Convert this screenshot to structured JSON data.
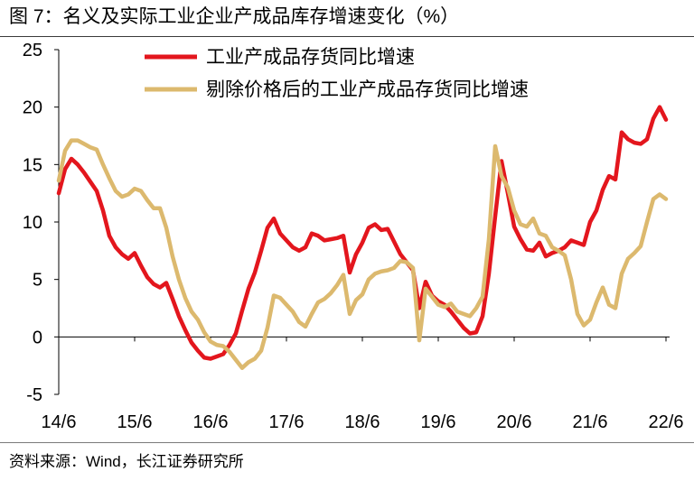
{
  "source": "资料来源：Wind，长江证券研究所",
  "chart_data": {
    "type": "line",
    "title": "图 7：名义及实际工业企业产成品库存增速变化（%）",
    "ylim": [
      -5,
      25
    ],
    "yticks": [
      -5,
      0,
      5,
      10,
      15,
      20,
      25
    ],
    "x_tick_labels": [
      "14/6",
      "15/6",
      "16/6",
      "17/6",
      "18/6",
      "19/6",
      "20/6",
      "21/6",
      "22/6"
    ],
    "x": [
      "14/6",
      "14/7",
      "14/8",
      "14/9",
      "14/10",
      "14/11",
      "14/12",
      "15/1",
      "15/2",
      "15/3",
      "15/4",
      "15/5",
      "15/6",
      "15/7",
      "15/8",
      "15/9",
      "15/10",
      "15/11",
      "15/12",
      "16/1",
      "16/2",
      "16/3",
      "16/4",
      "16/5",
      "16/6",
      "16/7",
      "16/8",
      "16/9",
      "16/10",
      "16/11",
      "16/12",
      "17/1",
      "17/2",
      "17/3",
      "17/4",
      "17/5",
      "17/6",
      "17/7",
      "17/8",
      "17/9",
      "17/10",
      "17/11",
      "17/12",
      "18/1",
      "18/2",
      "18/3",
      "18/4",
      "18/5",
      "18/6",
      "18/7",
      "18/8",
      "18/9",
      "18/10",
      "18/11",
      "18/12",
      "19/1",
      "19/2",
      "19/3",
      "19/4",
      "19/5",
      "19/6",
      "19/7",
      "19/8",
      "19/9",
      "19/10",
      "19/11",
      "19/12",
      "20/1",
      "20/2",
      "20/3",
      "20/4",
      "20/5",
      "20/6",
      "20/7",
      "20/8",
      "20/9",
      "20/10",
      "20/11",
      "20/12",
      "21/1",
      "21/2",
      "21/3",
      "21/4",
      "21/5",
      "21/6",
      "21/7",
      "21/8",
      "21/9",
      "21/10",
      "21/11",
      "21/12",
      "22/1",
      "22/2",
      "22/3",
      "22/4",
      "22/5",
      "22/6"
    ],
    "series": [
      {
        "name": "工业产成品存货同比增速",
        "color": "#e3161d",
        "values": [
          12.5,
          14.6,
          15.5,
          15.0,
          14.3,
          13.5,
          12.7,
          11.0,
          8.8,
          7.8,
          7.2,
          6.8,
          7.3,
          6.2,
          5.2,
          4.6,
          4.3,
          4.7,
          3.3,
          1.8,
          0.6,
          -0.5,
          -1.2,
          -1.8,
          -1.9,
          -1.7,
          -1.5,
          -0.7,
          0.3,
          2.3,
          4.2,
          5.6,
          7.5,
          9.5,
          10.3,
          9.0,
          8.4,
          7.8,
          7.5,
          7.8,
          9.0,
          8.8,
          8.4,
          8.5,
          8.6,
          8.8,
          5.6,
          7.2,
          8.2,
          9.5,
          9.8,
          9.3,
          9.4,
          8.3,
          7.2,
          6.5,
          5.8,
          2.5,
          4.8,
          3.6,
          3.1,
          2.8,
          2.2,
          1.5,
          0.8,
          0.3,
          0.4,
          1.8,
          5.5,
          10.5,
          15.3,
          12.5,
          9.6,
          8.5,
          7.6,
          7.5,
          8.2,
          7.0,
          7.3,
          7.5,
          7.8,
          8.4,
          8.2,
          8.0,
          10.0,
          11.0,
          12.8,
          14.0,
          13.7,
          17.8,
          17.2,
          16.9,
          16.8,
          17.2,
          19.0,
          20.0,
          18.9
        ]
      },
      {
        "name": "剔除价格后的工业产成品存货同比增速",
        "color": "#dcb96e",
        "values": [
          13.6,
          16.2,
          17.1,
          17.1,
          16.8,
          16.5,
          16.3,
          15.0,
          13.8,
          12.7,
          12.2,
          12.4,
          12.9,
          12.7,
          11.9,
          11.2,
          11.2,
          9.5,
          7.0,
          5.0,
          3.4,
          2.2,
          1.5,
          0.4,
          -0.4,
          -0.7,
          -0.8,
          -1.3,
          -2.0,
          -2.7,
          -2.2,
          -1.9,
          -1.2,
          0.8,
          3.6,
          3.4,
          2.8,
          2.2,
          1.3,
          0.9,
          2.0,
          3.0,
          3.3,
          3.8,
          4.5,
          5.4,
          2.0,
          3.2,
          3.7,
          5.0,
          5.5,
          5.7,
          5.8,
          6.0,
          6.6,
          6.5,
          6.0,
          -0.3,
          4.2,
          3.5,
          2.8,
          2.6,
          2.9,
          2.2,
          2.0,
          1.8,
          2.5,
          3.5,
          8.5,
          16.6,
          14.0,
          13.0,
          11.0,
          9.8,
          9.6,
          10.3,
          9.0,
          8.8,
          7.8,
          7.5,
          7.1,
          5.0,
          2.0,
          1.0,
          1.5,
          3.0,
          4.3,
          2.8,
          2.5,
          5.5,
          6.8,
          7.3,
          7.9,
          10.0,
          12.0,
          12.4,
          12.0
        ]
      }
    ],
    "grid": false,
    "legend_position": "top-left"
  }
}
